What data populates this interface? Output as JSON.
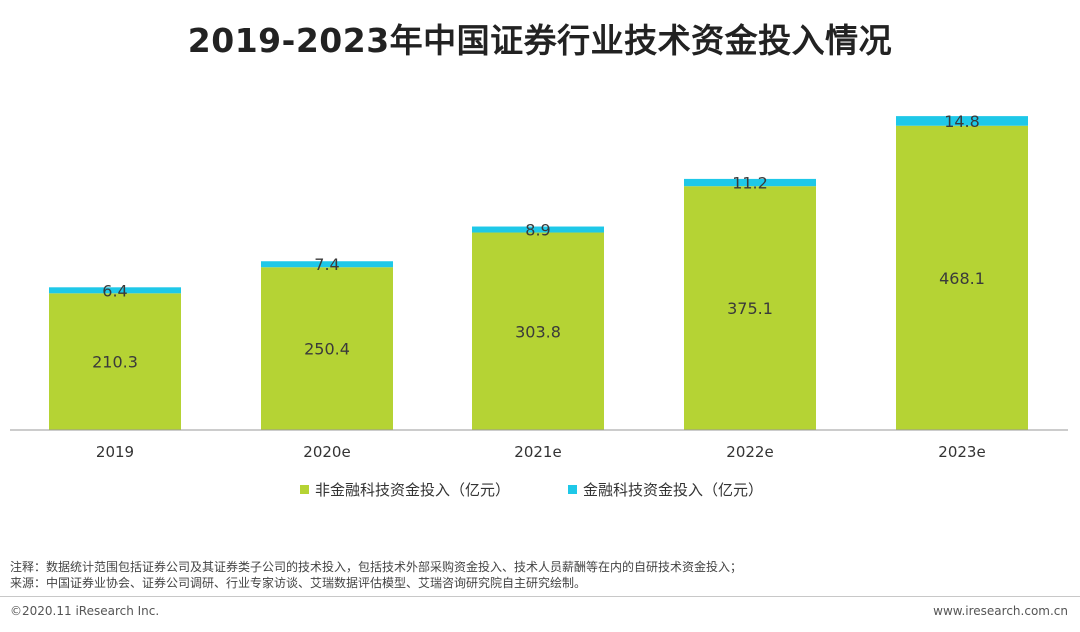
{
  "title": "2019-2023年中国证券行业技术资金投入情况",
  "chart_data": {
    "type": "bar",
    "stacked": true,
    "title": "2019-2023年中国证券行业技术资金投入情况",
    "categories": [
      "2019",
      "2020e",
      "2021e",
      "2022e",
      "2023e"
    ],
    "series": [
      {
        "name": "非金融科技资金投入（亿元）",
        "color": "#b5d334",
        "values": [
          210.3,
          250.4,
          303.8,
          375.1,
          468.1
        ]
      },
      {
        "name": "金融科技资金投入（亿元）",
        "color": "#1ec8e8",
        "values": [
          6.4,
          7.4,
          8.9,
          11.2,
          14.8
        ]
      }
    ],
    "xlabel": "",
    "ylabel": "",
    "ylim": [
      0,
      500
    ],
    "grid": false,
    "legend": "bottom"
  },
  "legend": {
    "items": [
      {
        "label": "非金融科技资金投入（亿元）",
        "color": "#b5d334"
      },
      {
        "label": "金融科技资金投入（亿元）",
        "color": "#1ec8e8"
      }
    ]
  },
  "notes": {
    "note": "注释：数据统计范围包括证券公司及其证券类子公司的技术投入，包括技术外部采购资金投入、技术人员薪酬等在内的自研技术资金投入；",
    "source": "来源：中国证券业协会、证券公司调研、行业专家访谈、艾瑞数据评估模型、艾瑞咨询研究院自主研究绘制。"
  },
  "footer": {
    "copyright": "©2020.11 iResearch Inc.",
    "website": "www.iresearch.com.cn"
  }
}
